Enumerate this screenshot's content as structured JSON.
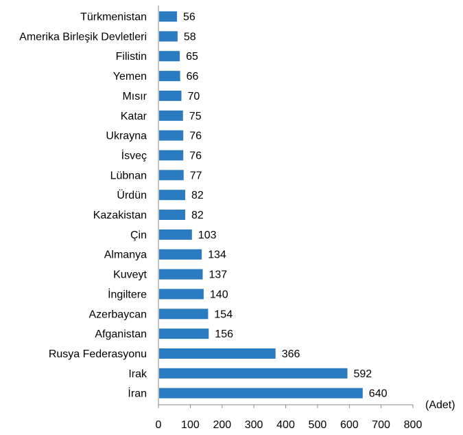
{
  "chart_data": {
    "type": "bar",
    "orientation": "horizontal",
    "categories": [
      "Türkmenistan",
      "Amerika Birleşik Devletleri",
      "Filistin",
      "Yemen",
      "Mısır",
      "Katar",
      "Ukrayna",
      "İsveç",
      "Lübnan",
      "Ürdün",
      "Kazakistan",
      "Çin",
      "Almanya",
      "Kuveyt",
      "İngiltere",
      "Azerbaycan",
      "Afganistan",
      "Rusya Federasyonu",
      "Irak",
      "İran"
    ],
    "values": [
      56,
      58,
      65,
      66,
      70,
      75,
      76,
      76,
      77,
      82,
      82,
      103,
      134,
      137,
      140,
      154,
      156,
      366,
      592,
      640
    ],
    "xlim": [
      0,
      800
    ],
    "xticks": [
      0,
      100,
      200,
      300,
      400,
      500,
      600,
      700,
      800
    ],
    "unit_label": "(Adet)",
    "bar_color": "#2B7BC0",
    "grid": false,
    "data_labels": true
  }
}
